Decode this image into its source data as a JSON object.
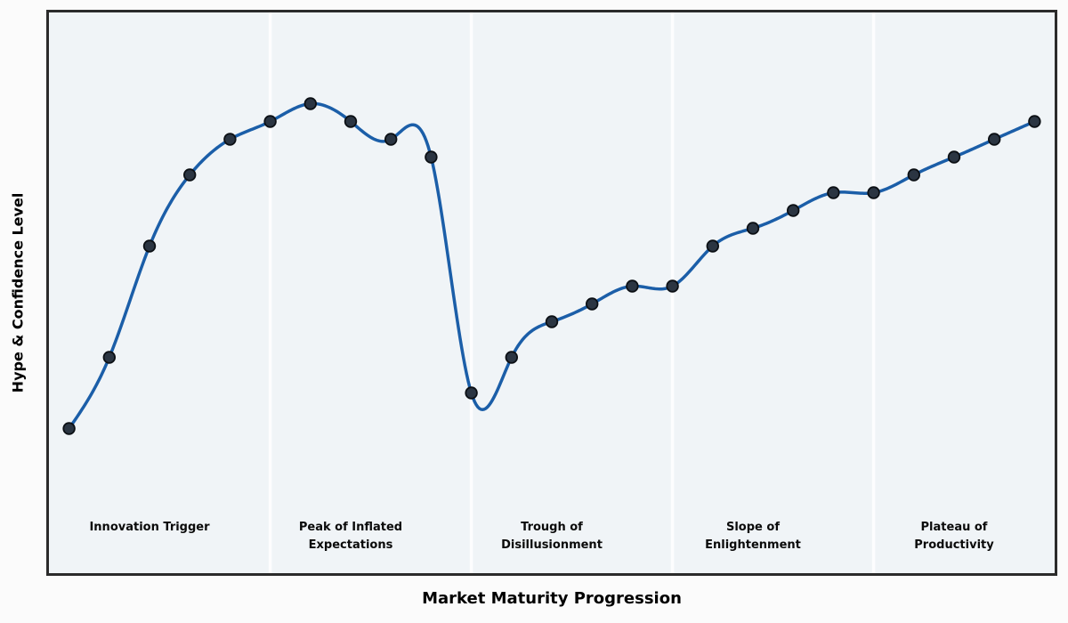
{
  "chart_data": {
    "type": "line",
    "title": "",
    "xlabel": "Market Maturity Progression",
    "ylabel": "Hype & Confidence Level",
    "x": [
      0,
      1,
      2,
      3,
      4,
      5,
      6,
      7,
      8,
      9,
      10,
      11,
      12,
      13,
      14,
      15,
      16,
      17,
      18,
      19,
      20,
      21,
      22,
      23,
      24
    ],
    "values": [
      25,
      41,
      66,
      82,
      90,
      94,
      98,
      94,
      90,
      86,
      33,
      41,
      49,
      53,
      57,
      57,
      66,
      70,
      74,
      78,
      78,
      82,
      86,
      90,
      94
    ],
    "xlim": [
      -0.5,
      24.5
    ],
    "ylim": [
      -7.5,
      118.5
    ],
    "grid": false,
    "legend_position": "none",
    "smoothing": "cubic-spline",
    "x_tick_labels": [],
    "y_tick_labels": [],
    "phase_boundaries_x": [
      5,
      10,
      15,
      20
    ],
    "phases": [
      {
        "label_lines": [
          "Innovation Trigger"
        ],
        "center_x": 2
      },
      {
        "label_lines": [
          "Peak of Inflated",
          "Expectations"
        ],
        "center_x": 7
      },
      {
        "label_lines": [
          "Trough of",
          "Disillusionment"
        ],
        "center_x": 12
      },
      {
        "label_lines": [
          "Slope of",
          "Enlightenment"
        ],
        "center_x": 17
      },
      {
        "label_lines": [
          "Plateau of",
          "Productivity"
        ],
        "center_x": 22
      }
    ],
    "colors": {
      "line": "#1b5ea8",
      "marker_fill": "#2b3542",
      "marker_edge": "#0b0f14",
      "plot_background": "#f0f4f7",
      "figure_background": "#fbfbfb",
      "axis_border": "#2b2b2b",
      "phase_divider": "#fdfdfe",
      "label_text": "#0a0a0a"
    }
  }
}
